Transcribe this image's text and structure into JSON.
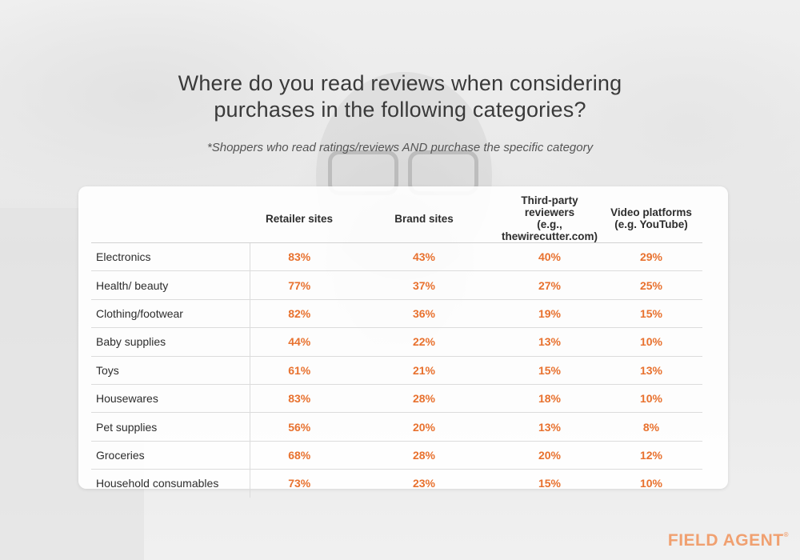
{
  "title_line1": "Where do you read reviews when considering",
  "title_line2": "purchases in the following categories?",
  "subtitle": "*Shoppers who read ratings/reviews AND purchase the specific category",
  "brand": "FIELD AGENT",
  "brand_mark": "®",
  "accent_color": "#e8712e",
  "chart_data": {
    "type": "table",
    "columns": [
      "Retailer sites",
      "Brand sites",
      "Third-party reviewers (e.g., thewirecutter.com)",
      "Video platforms (e.g. YouTube)"
    ],
    "column_lines": [
      [
        "Retailer sites"
      ],
      [
        "Brand sites"
      ],
      [
        "Third-party reviewers",
        "(e.g., thewirecutter.com)"
      ],
      [
        "Video platforms",
        "(e.g. YouTube)"
      ]
    ],
    "rows": [
      {
        "category": "Electronics",
        "values": [
          "83%",
          "43%",
          "40%",
          "29%"
        ]
      },
      {
        "category": "Health/ beauty",
        "values": [
          "77%",
          "37%",
          "27%",
          "25%"
        ]
      },
      {
        "category": "Clothing/footwear",
        "values": [
          "82%",
          "36%",
          "19%",
          "15%"
        ]
      },
      {
        "category": "Baby supplies",
        "values": [
          "44%",
          "22%",
          "13%",
          "10%"
        ]
      },
      {
        "category": "Toys",
        "values": [
          "61%",
          "21%",
          "15%",
          "13%"
        ]
      },
      {
        "category": "Housewares",
        "values": [
          "83%",
          "28%",
          "18%",
          "10%"
        ]
      },
      {
        "category": "Pet supplies",
        "values": [
          "56%",
          "20%",
          "13%",
          "8%"
        ]
      },
      {
        "category": "Groceries",
        "values": [
          "68%",
          "28%",
          "20%",
          "12%"
        ]
      },
      {
        "category": "Household consumables",
        "values": [
          "73%",
          "23%",
          "15%",
          "10%"
        ]
      }
    ]
  }
}
